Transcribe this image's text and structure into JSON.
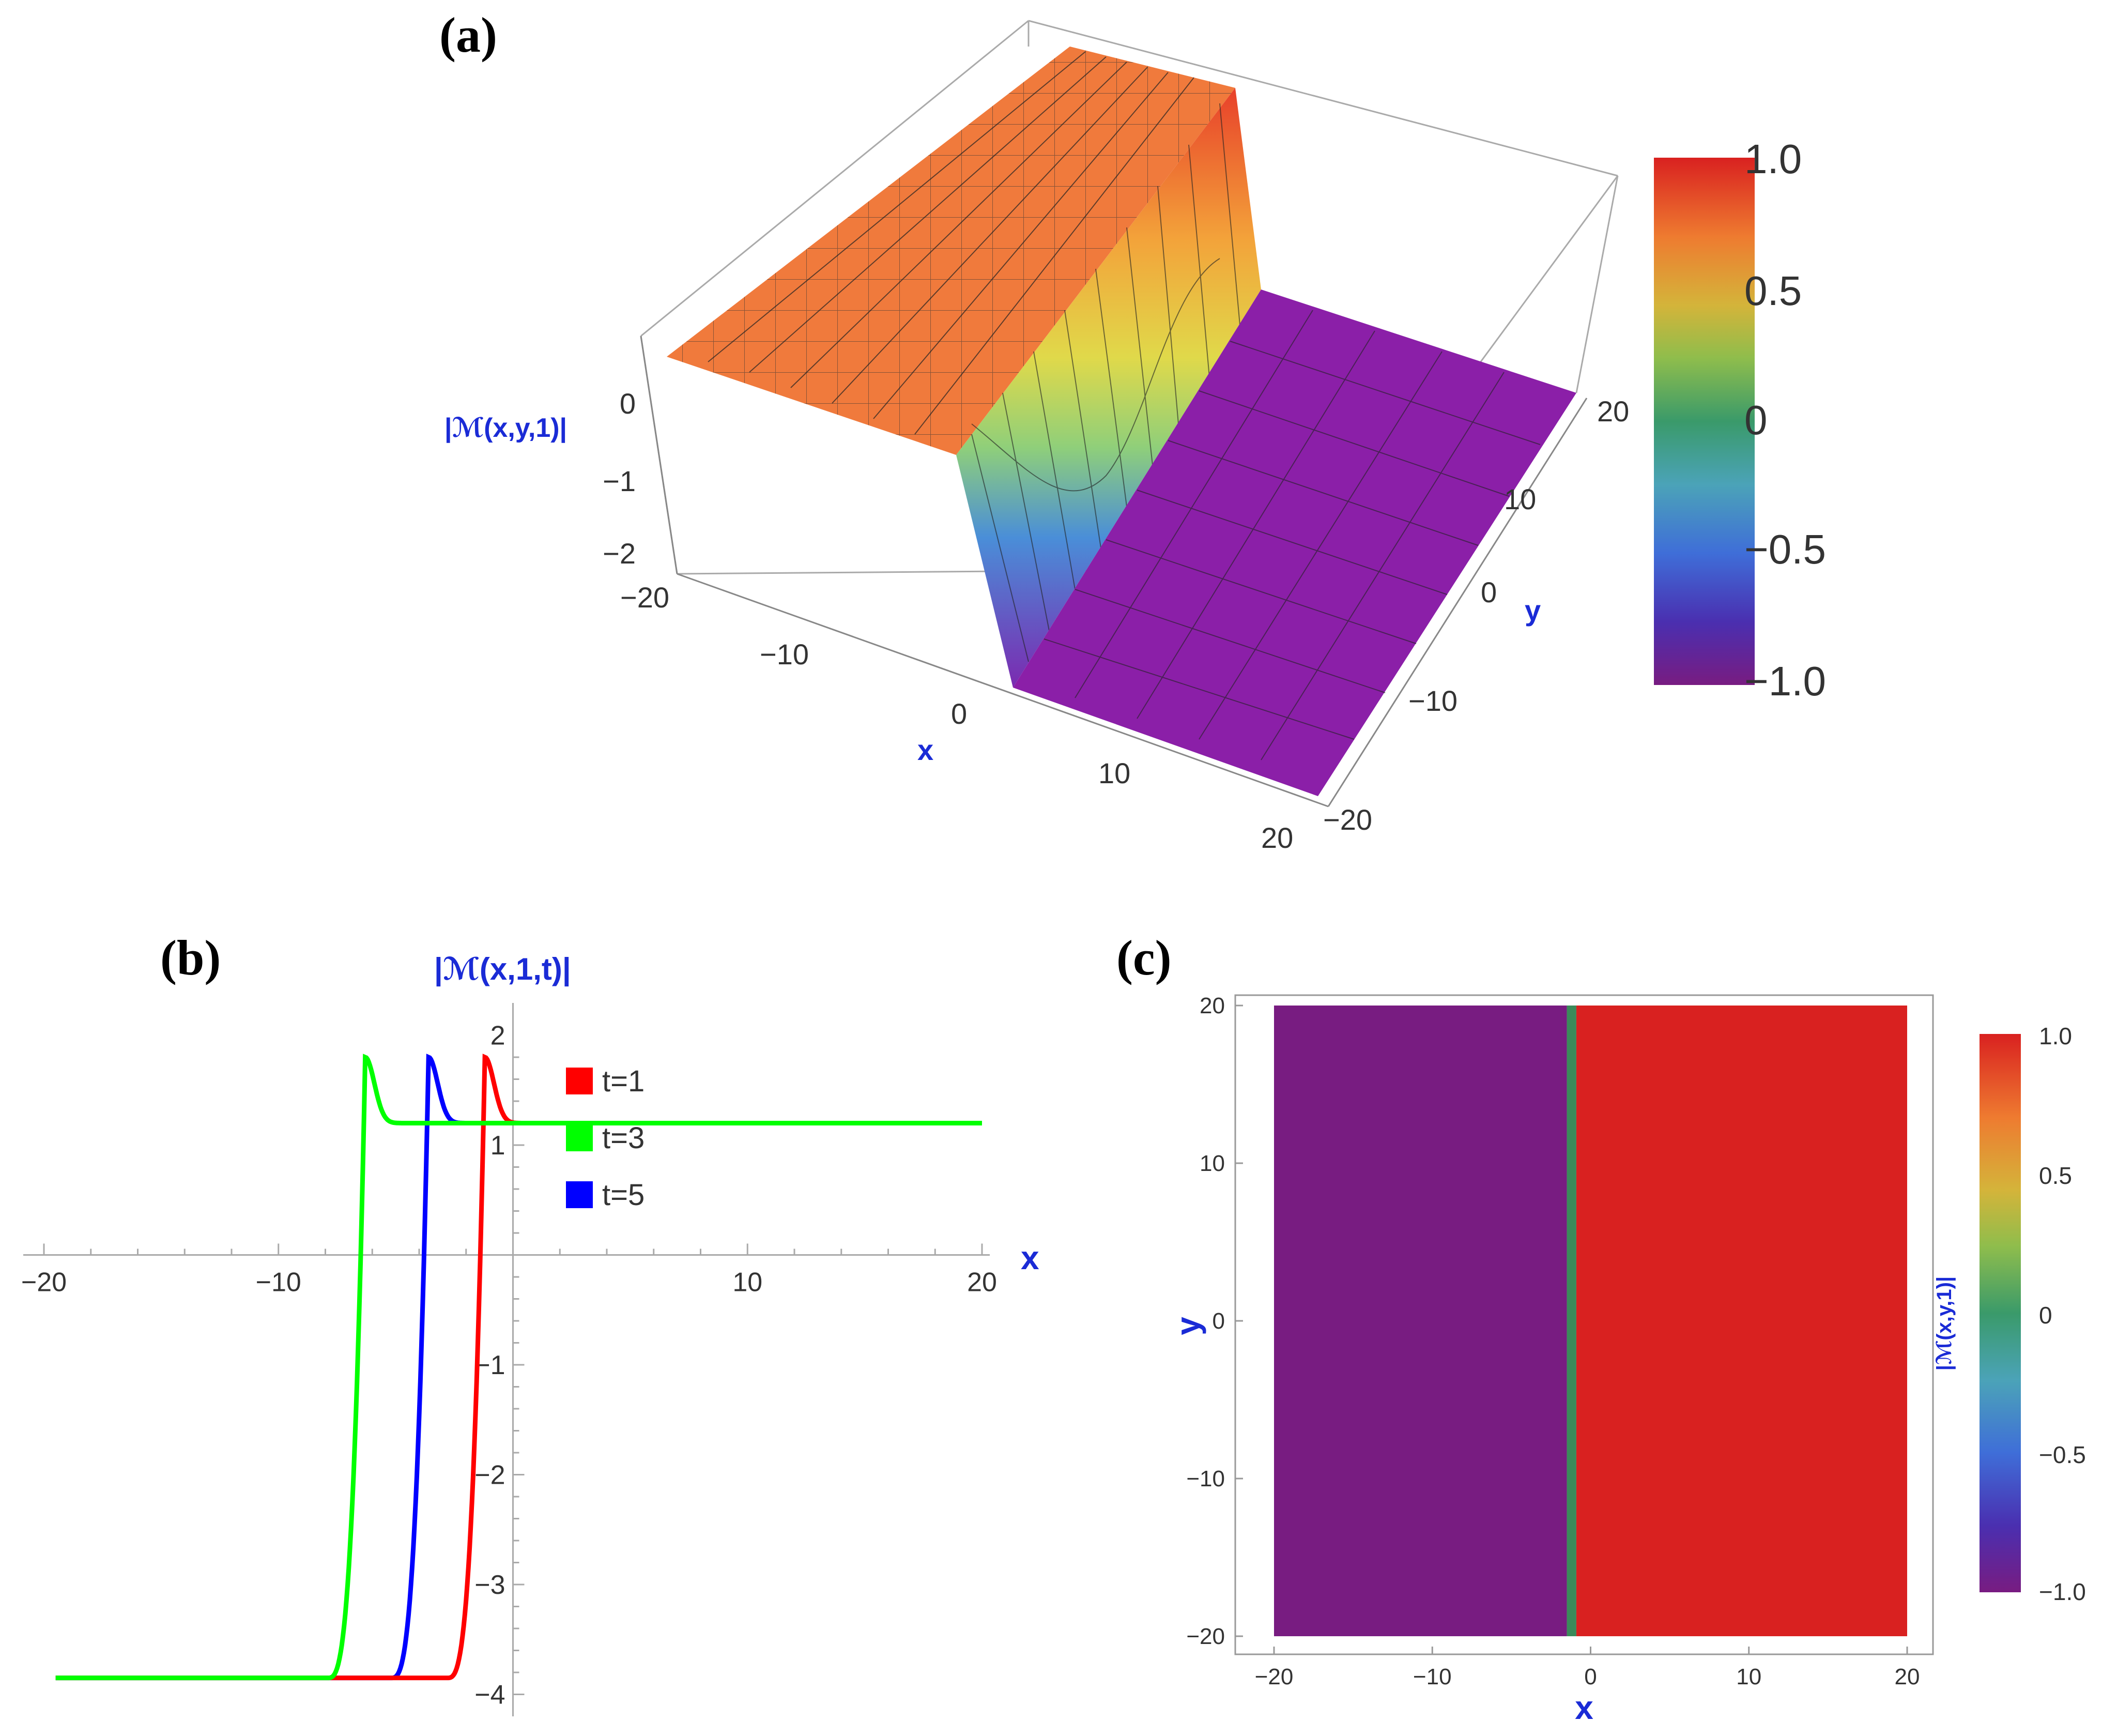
{
  "panels": {
    "a": {
      "label": "(a)"
    },
    "b": {
      "label": "(b)"
    },
    "c": {
      "label": "(c)"
    }
  },
  "chart_data": [
    {
      "id": "a",
      "type": "surface3d",
      "zlabel": "|ℳ(x,y,1)|",
      "xlabel": "x",
      "ylabel": "y",
      "x_ticks": [
        "−20",
        "−10",
        "0",
        "10",
        "20"
      ],
      "y_ticks": [
        "−20",
        "−10",
        "0",
        "10",
        "20"
      ],
      "z_ticks": [
        "0",
        "−1",
        "−2"
      ],
      "xlim": [
        -20,
        20
      ],
      "ylim": [
        -20,
        20
      ],
      "colorbar": {
        "ticks": [
          "1.0",
          "0.5",
          "0",
          "−0.5",
          "−1.0"
        ],
        "range": [
          -1,
          1
        ]
      }
    },
    {
      "id": "b",
      "type": "line",
      "title": "|ℳ(x,1,t)|",
      "xlabel": "x",
      "xlim": [
        -20,
        20
      ],
      "ylim": [
        -4.2,
        2.2
      ],
      "x_ticks": [
        "−20",
        "−10",
        "10",
        "20"
      ],
      "x_tick_values": [
        -20,
        -10,
        10,
        20
      ],
      "y_ticks": [
        "2",
        "1",
        "−1",
        "−2",
        "−3",
        "−4"
      ],
      "y_tick_values": [
        2,
        1,
        -1,
        -2,
        -3,
        -4
      ],
      "series": [
        {
          "name": "t=1",
          "color": "#ff0000",
          "step_x": -1.2,
          "low": -3.85,
          "plateau": 1.2,
          "peak": 1.8
        },
        {
          "name": "t=3",
          "color": "#00ff00",
          "step_x": -6.3,
          "low": -3.85,
          "plateau": 1.2,
          "peak": 1.8
        },
        {
          "name": "t=5",
          "color": "#0000ff",
          "step_x": -3.6,
          "low": -3.85,
          "plateau": 1.2,
          "peak": 1.8
        }
      ]
    },
    {
      "id": "c",
      "type": "heatmap",
      "xlabel": "x",
      "ylabel": "y",
      "colorbar_label": "|ℳ(x,y,1)|",
      "xlim": [
        -20,
        20
      ],
      "ylim": [
        -20,
        20
      ],
      "x_ticks": [
        "−20",
        "−10",
        "0",
        "10",
        "20"
      ],
      "y_ticks": [
        "20",
        "10",
        "0",
        "−10",
        "−20"
      ],
      "regions": [
        {
          "x_from": -20,
          "x_to": -1.5,
          "value": -1.0,
          "color": "#781c81"
        },
        {
          "x_from": -1.5,
          "x_to": -0.9,
          "value": 0,
          "color": "#3a8a5a"
        },
        {
          "x_from": -0.9,
          "x_to": 20,
          "value": 1.0,
          "color": "#d92120"
        }
      ],
      "colorbar": {
        "ticks": [
          "1.0",
          "0.5",
          "0",
          "−0.5",
          "−1.0"
        ]
      }
    }
  ],
  "colors": {
    "label_blue": "#1a2bd6",
    "orange_plateau": "#f07a3c",
    "purple_plateau": "#8b1fa8"
  }
}
